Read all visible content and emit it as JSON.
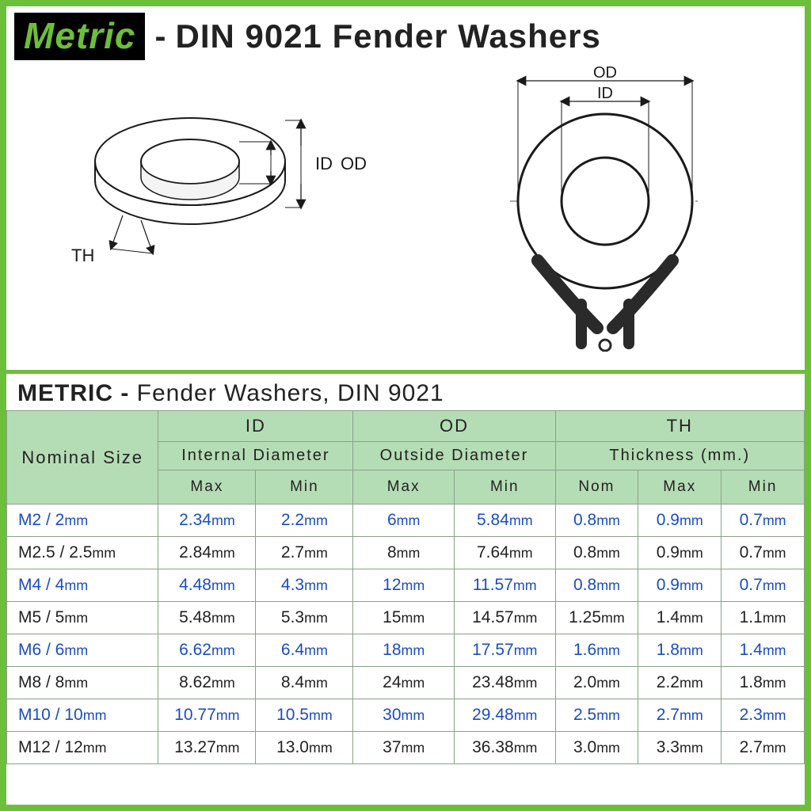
{
  "header": {
    "badge_text": "Metric",
    "title_rest": "DIN 9021  Fender  Washers",
    "badge_bg": "#000000",
    "badge_fg": "#6cbf3a"
  },
  "diagrams": {
    "side_view": {
      "labels": {
        "id": "ID",
        "od": "OD",
        "th": "TH"
      }
    },
    "top_view": {
      "labels": {
        "id": "ID",
        "od": "OD"
      }
    },
    "stroke_color": "#1a1a1a",
    "stroke_width_main": 2,
    "stroke_width_thin": 1.2
  },
  "table": {
    "title_prefix": "METRIC",
    "title_rest": "Fender Washers, DIN 9021",
    "header_bg": "#b5ddb5",
    "grid_color": "#8aa08a",
    "row_blue_color": "#1a4cc4",
    "row_black_color": "#222222",
    "columns": {
      "size": {
        "label": "Nominal Size"
      },
      "id": {
        "short": "ID",
        "long": "Internal Diameter",
        "sub": [
          "Max",
          "Min"
        ]
      },
      "od": {
        "short": "OD",
        "long": "Outside Diameter",
        "sub": [
          "Max",
          "Min"
        ]
      },
      "th": {
        "short": "TH",
        "long": "Thickness (mm.)",
        "sub": [
          "Nom",
          "Max",
          "Min"
        ]
      }
    },
    "rows": [
      {
        "color": "blue",
        "size": "M2 / 2mm",
        "id_max": "2.34mm",
        "id_min": "2.2mm",
        "od_max": "6mm",
        "od_min": "5.84mm",
        "th_nom": "0.8mm",
        "th_max": "0.9mm",
        "th_min": "0.7mm"
      },
      {
        "color": "black",
        "size": "M2.5 / 2.5mm",
        "id_max": "2.84mm",
        "id_min": "2.7mm",
        "od_max": "8mm",
        "od_min": "7.64mm",
        "th_nom": "0.8mm",
        "th_max": "0.9mm",
        "th_min": "0.7mm"
      },
      {
        "color": "blue",
        "size": "M4 / 4mm",
        "id_max": "4.48mm",
        "id_min": "4.3mm",
        "od_max": "12mm",
        "od_min": "11.57mm",
        "th_nom": "0.8mm",
        "th_max": "0.9mm",
        "th_min": "0.7mm"
      },
      {
        "color": "black",
        "size": "M5 / 5mm",
        "id_max": "5.48mm",
        "id_min": "5.3mm",
        "od_max": "15mm",
        "od_min": "14.57mm",
        "th_nom": "1.25mm",
        "th_max": "1.4mm",
        "th_min": "1.1mm"
      },
      {
        "color": "blue",
        "size": "M6 / 6mm",
        "id_max": "6.62mm",
        "id_min": "6.4mm",
        "od_max": "18mm",
        "od_min": "17.57mm",
        "th_nom": "1.6mm",
        "th_max": "1.8mm",
        "th_min": "1.4mm"
      },
      {
        "color": "black",
        "size": "M8 / 8mm",
        "id_max": "8.62mm",
        "id_min": "8.4mm",
        "od_max": "24mm",
        "od_min": "23.48mm",
        "th_nom": "2.0mm",
        "th_max": "2.2mm",
        "th_min": "1.8mm"
      },
      {
        "color": "blue",
        "size": "M10 / 10mm",
        "id_max": "10.77mm",
        "id_min": "10.5mm",
        "od_max": "30mm",
        "od_min": "29.48mm",
        "th_nom": "2.5mm",
        "th_max": "2.7mm",
        "th_min": "2.3mm"
      },
      {
        "color": "black",
        "size": "M12 / 12mm",
        "id_max": "13.27mm",
        "id_min": "13.0mm",
        "od_max": "37mm",
        "od_min": "36.38mm",
        "th_nom": "3.0mm",
        "th_max": "3.3mm",
        "th_min": "2.7mm"
      }
    ]
  },
  "frame_color": "#6cbf3a"
}
